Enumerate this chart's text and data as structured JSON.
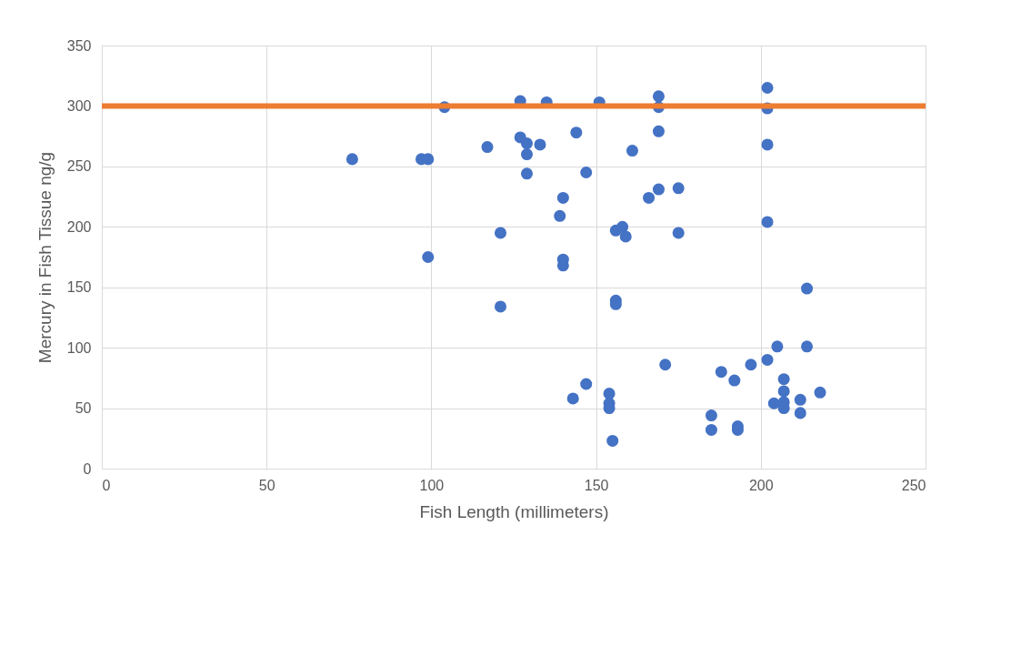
{
  "chart_data": {
    "type": "scatter",
    "xlabel": "Fish Length (millimeters)",
    "ylabel": "Mercury in Fish Tissue ng/g",
    "x": [
      76,
      97,
      99,
      104,
      117,
      127,
      127,
      129,
      133,
      129,
      135,
      144,
      151,
      169,
      169,
      169,
      161,
      129,
      147,
      140,
      139,
      169,
      166,
      175,
      121,
      156,
      158,
      159,
      175,
      99,
      140,
      140,
      121,
      156,
      156,
      171,
      147,
      143,
      154,
      154,
      154,
      155,
      202,
      202,
      202,
      202,
      214,
      205,
      214,
      202,
      197,
      188,
      192,
      207,
      207,
      204,
      207,
      207,
      212,
      212,
      218,
      185,
      185,
      193,
      193
    ],
    "series": [
      {
        "color": "#4472c4",
        "values": [
          256,
          256,
          256,
          299,
          266,
          304,
          274,
          269,
          268,
          260,
          303,
          278,
          303,
          308,
          299,
          279,
          263,
          244,
          245,
          224,
          209,
          231,
          224,
          232,
          195,
          197,
          200,
          192,
          195,
          175,
          173,
          168,
          134,
          139,
          136,
          86,
          70,
          58,
          62,
          54,
          50,
          23,
          315,
          298,
          268,
          204,
          149,
          101,
          101,
          90,
          86,
          80,
          73,
          74,
          64,
          54,
          55,
          50,
          57,
          46,
          63,
          44,
          32,
          35,
          32
        ]
      }
    ],
    "marker": "circle",
    "xlim": [
      0,
      250
    ],
    "ylim": [
      0,
      350
    ],
    "xticks": [
      0,
      50,
      100,
      150,
      200,
      250
    ],
    "yticks": [
      0,
      50,
      100,
      150,
      200,
      250,
      300,
      350
    ],
    "grid": true,
    "ref_lines": [
      {
        "axis": "y",
        "value": 300,
        "color": "#ed7d31"
      }
    ]
  }
}
